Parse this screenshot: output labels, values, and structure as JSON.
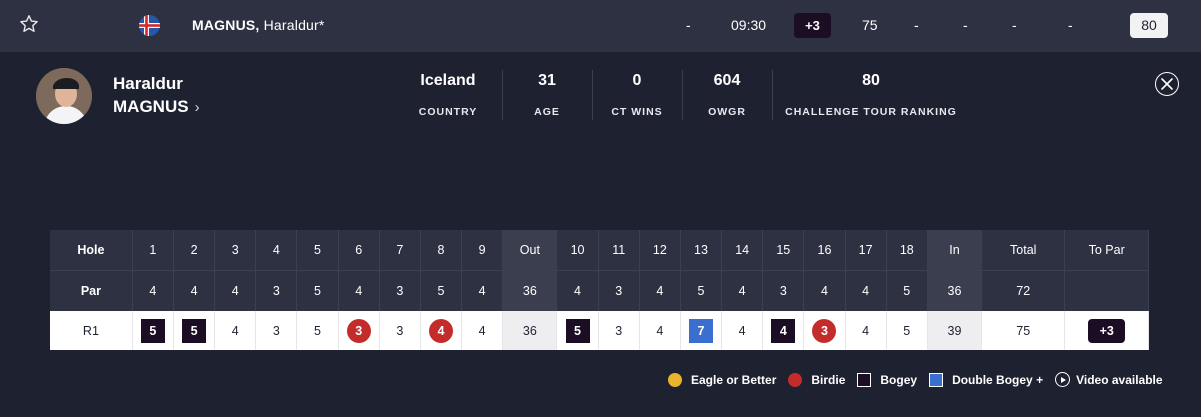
{
  "topbar": {
    "favourite_icon": "star-outline-icon",
    "flag_icon": "iceland-flag-icon",
    "last_name": "MAGNUS,",
    "first_name": "Haraldur*",
    "position": "-",
    "tee_time": "09:30",
    "to_par": "+3",
    "score": "75",
    "r2": "-",
    "r3": "-",
    "r4": "-",
    "thru": "-",
    "rank": "80"
  },
  "player": {
    "first_name": "Haraldur",
    "last_name": "MAGNUS",
    "chevron": "›"
  },
  "stats": [
    {
      "value": "Iceland",
      "label": "COUNTRY"
    },
    {
      "value": "31",
      "label": "AGE"
    },
    {
      "value": "0",
      "label": "CT WINS"
    },
    {
      "value": "604",
      "label": "OWGR"
    },
    {
      "value": "80",
      "label": "CHALLENGE TOUR RANKING"
    }
  ],
  "scorecard": {
    "hole_label": "Hole",
    "par_label": "Par",
    "round_label": "R1",
    "holes": [
      "1",
      "2",
      "3",
      "4",
      "5",
      "6",
      "7",
      "8",
      "9",
      "Out",
      "10",
      "11",
      "12",
      "13",
      "14",
      "15",
      "16",
      "17",
      "18",
      "In",
      "Total",
      "To Par"
    ],
    "par": [
      "4",
      "4",
      "4",
      "3",
      "5",
      "4",
      "3",
      "5",
      "4",
      "36",
      "4",
      "3",
      "4",
      "5",
      "4",
      "3",
      "4",
      "4",
      "5",
      "36",
      "72",
      ""
    ],
    "r1": [
      "5",
      "5",
      "4",
      "3",
      "5",
      "3",
      "3",
      "4",
      "4",
      "36",
      "5",
      "3",
      "4",
      "7",
      "4",
      "4",
      "3",
      "4",
      "5",
      "39",
      "75",
      "+3"
    ]
  },
  "legend": {
    "eagle": "Eagle or Better",
    "birdie": "Birdie",
    "bogey": "Bogey",
    "double": "Double Bogey +",
    "video": "Video available"
  },
  "colors": {
    "background": "#1e2130",
    "bar": "#2d3141",
    "bogey": "#1a0d24",
    "birdie": "#c42b2b",
    "double_bogey": "#3a6fcf",
    "eagle": "#e8b52c"
  }
}
